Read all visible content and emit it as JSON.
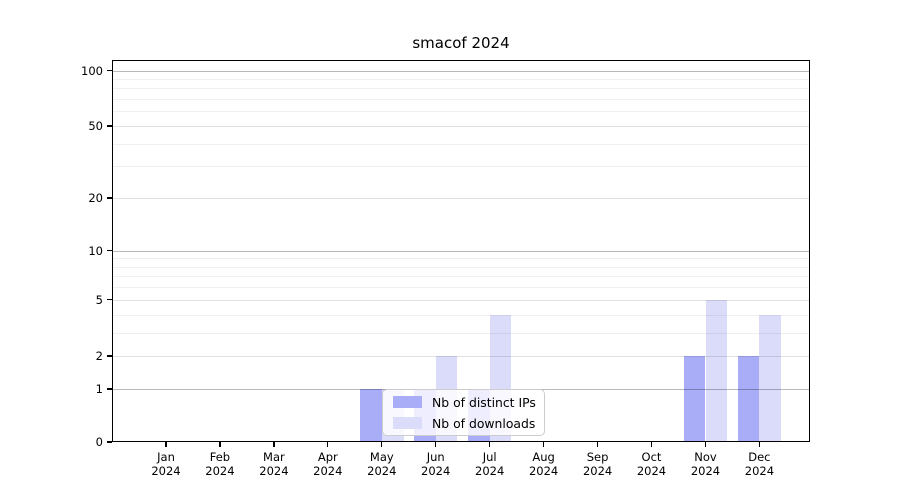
{
  "chart_data": {
    "type": "bar",
    "title": "smacof 2024",
    "categories": [
      {
        "month": "Jan",
        "year": "2024"
      },
      {
        "month": "Feb",
        "year": "2024"
      },
      {
        "month": "Mar",
        "year": "2024"
      },
      {
        "month": "Apr",
        "year": "2024"
      },
      {
        "month": "May",
        "year": "2024"
      },
      {
        "month": "Jun",
        "year": "2024"
      },
      {
        "month": "Jul",
        "year": "2024"
      },
      {
        "month": "Aug",
        "year": "2024"
      },
      {
        "month": "Sep",
        "year": "2024"
      },
      {
        "month": "Oct",
        "year": "2024"
      },
      {
        "month": "Nov",
        "year": "2024"
      },
      {
        "month": "Dec",
        "year": "2024"
      }
    ],
    "series": [
      {
        "name": "Nb of distinct IPs",
        "color": "#a9acf7",
        "values": [
          0,
          0,
          0,
          0,
          1,
          1,
          1,
          0,
          0,
          0,
          2,
          2
        ]
      },
      {
        "name": "Nb of downloads",
        "color": "#dbdcfa",
        "values": [
          0,
          0,
          0,
          0,
          1,
          2,
          4,
          0,
          0,
          0,
          5,
          4
        ]
      }
    ],
    "y_axis": {
      "scale": "log1p",
      "range": [
        0,
        114
      ],
      "major_ticks": [
        0,
        1,
        2,
        5,
        10,
        20,
        50,
        100
      ],
      "decade_gridlines": [
        1,
        10,
        100
      ],
      "minor_gridlines": [
        3,
        4,
        6,
        7,
        8,
        9,
        30,
        40,
        60,
        70,
        80,
        90
      ]
    },
    "legend": {
      "position": "lower center"
    },
    "grid": true,
    "axis_color": "#000000",
    "background_color": "#ffffff"
  }
}
